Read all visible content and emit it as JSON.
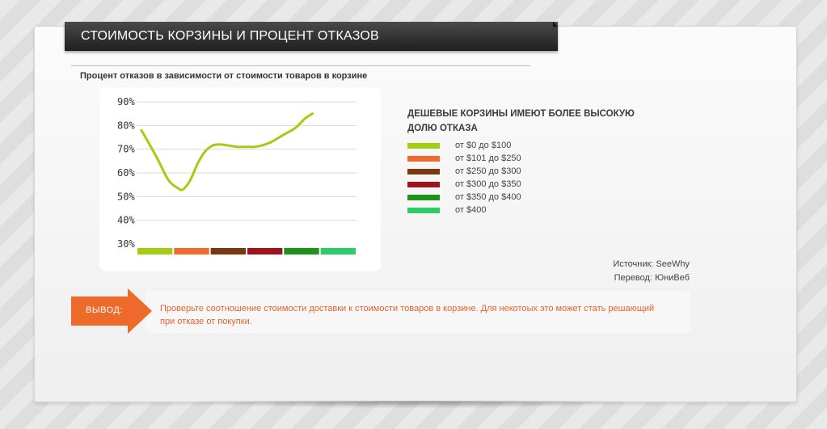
{
  "header": {
    "title": "СТОИМОСТЬ КОРЗИНЫ И ПРОЦЕНТ ОТКАЗОВ"
  },
  "chart_title": "Процент отказов в зависимости от стоимости товаров в корзине",
  "chart_data": {
    "type": "line",
    "title": "Процент отказов в зависимости от стоимости товаров в корзине",
    "xlabel": "",
    "ylabel": "",
    "y_ticks": [
      "90%",
      "80%",
      "70%",
      "60%",
      "50%",
      "40%",
      "30%"
    ],
    "ylim": [
      30,
      90
    ],
    "grid": true,
    "x_range": [
      0,
      450
    ],
    "series": [
      {
        "color": "#a3cd13",
        "points": [
          [
            10,
            78
          ],
          [
            40,
            67
          ],
          [
            65,
            57
          ],
          [
            85,
            53.5
          ],
          [
            95,
            53
          ],
          [
            110,
            57
          ],
          [
            125,
            64
          ],
          [
            140,
            69
          ],
          [
            155,
            71.5
          ],
          [
            170,
            72
          ],
          [
            190,
            71.5
          ],
          [
            205,
            71
          ],
          [
            225,
            71
          ],
          [
            240,
            71
          ],
          [
            255,
            71.5
          ],
          [
            275,
            73
          ],
          [
            300,
            76
          ],
          [
            325,
            79
          ],
          [
            345,
            83
          ],
          [
            360,
            85
          ]
        ]
      }
    ],
    "segments": [
      {
        "label": "от $0 до $100",
        "color": "#a3cd13"
      },
      {
        "label": "от $101 до $250",
        "color": "#ef6a2c"
      },
      {
        "label": "от $250 до $300",
        "color": "#7b3810"
      },
      {
        "label": "от $300 до $350",
        "color": "#a0131d"
      },
      {
        "label": "от $350 до $400",
        "color": "#1e931c"
      },
      {
        "label": "от $400",
        "color": "#2ecc68"
      }
    ]
  },
  "side": {
    "title_line1": "ДЕШЕВЫЕ КОРЗИНЫ ИМЕЮТ БОЛЕЕ ВЫСОКУЮ",
    "title_line2": "ДОЛЮ ОТКАЗА"
  },
  "source": {
    "line1": "Источник: SeeWhy",
    "line2": "Перевод: ЮниВеб"
  },
  "conclusion": {
    "label": "ВЫВОД:",
    "text": "Проверьте соотношение стоимости доставки к стоимости товаров в корзине. Для некотоых это может стать решающий при отказе от покупки."
  },
  "colors": {
    "accent": "#ee6a2a",
    "line": "#a3cd13"
  }
}
